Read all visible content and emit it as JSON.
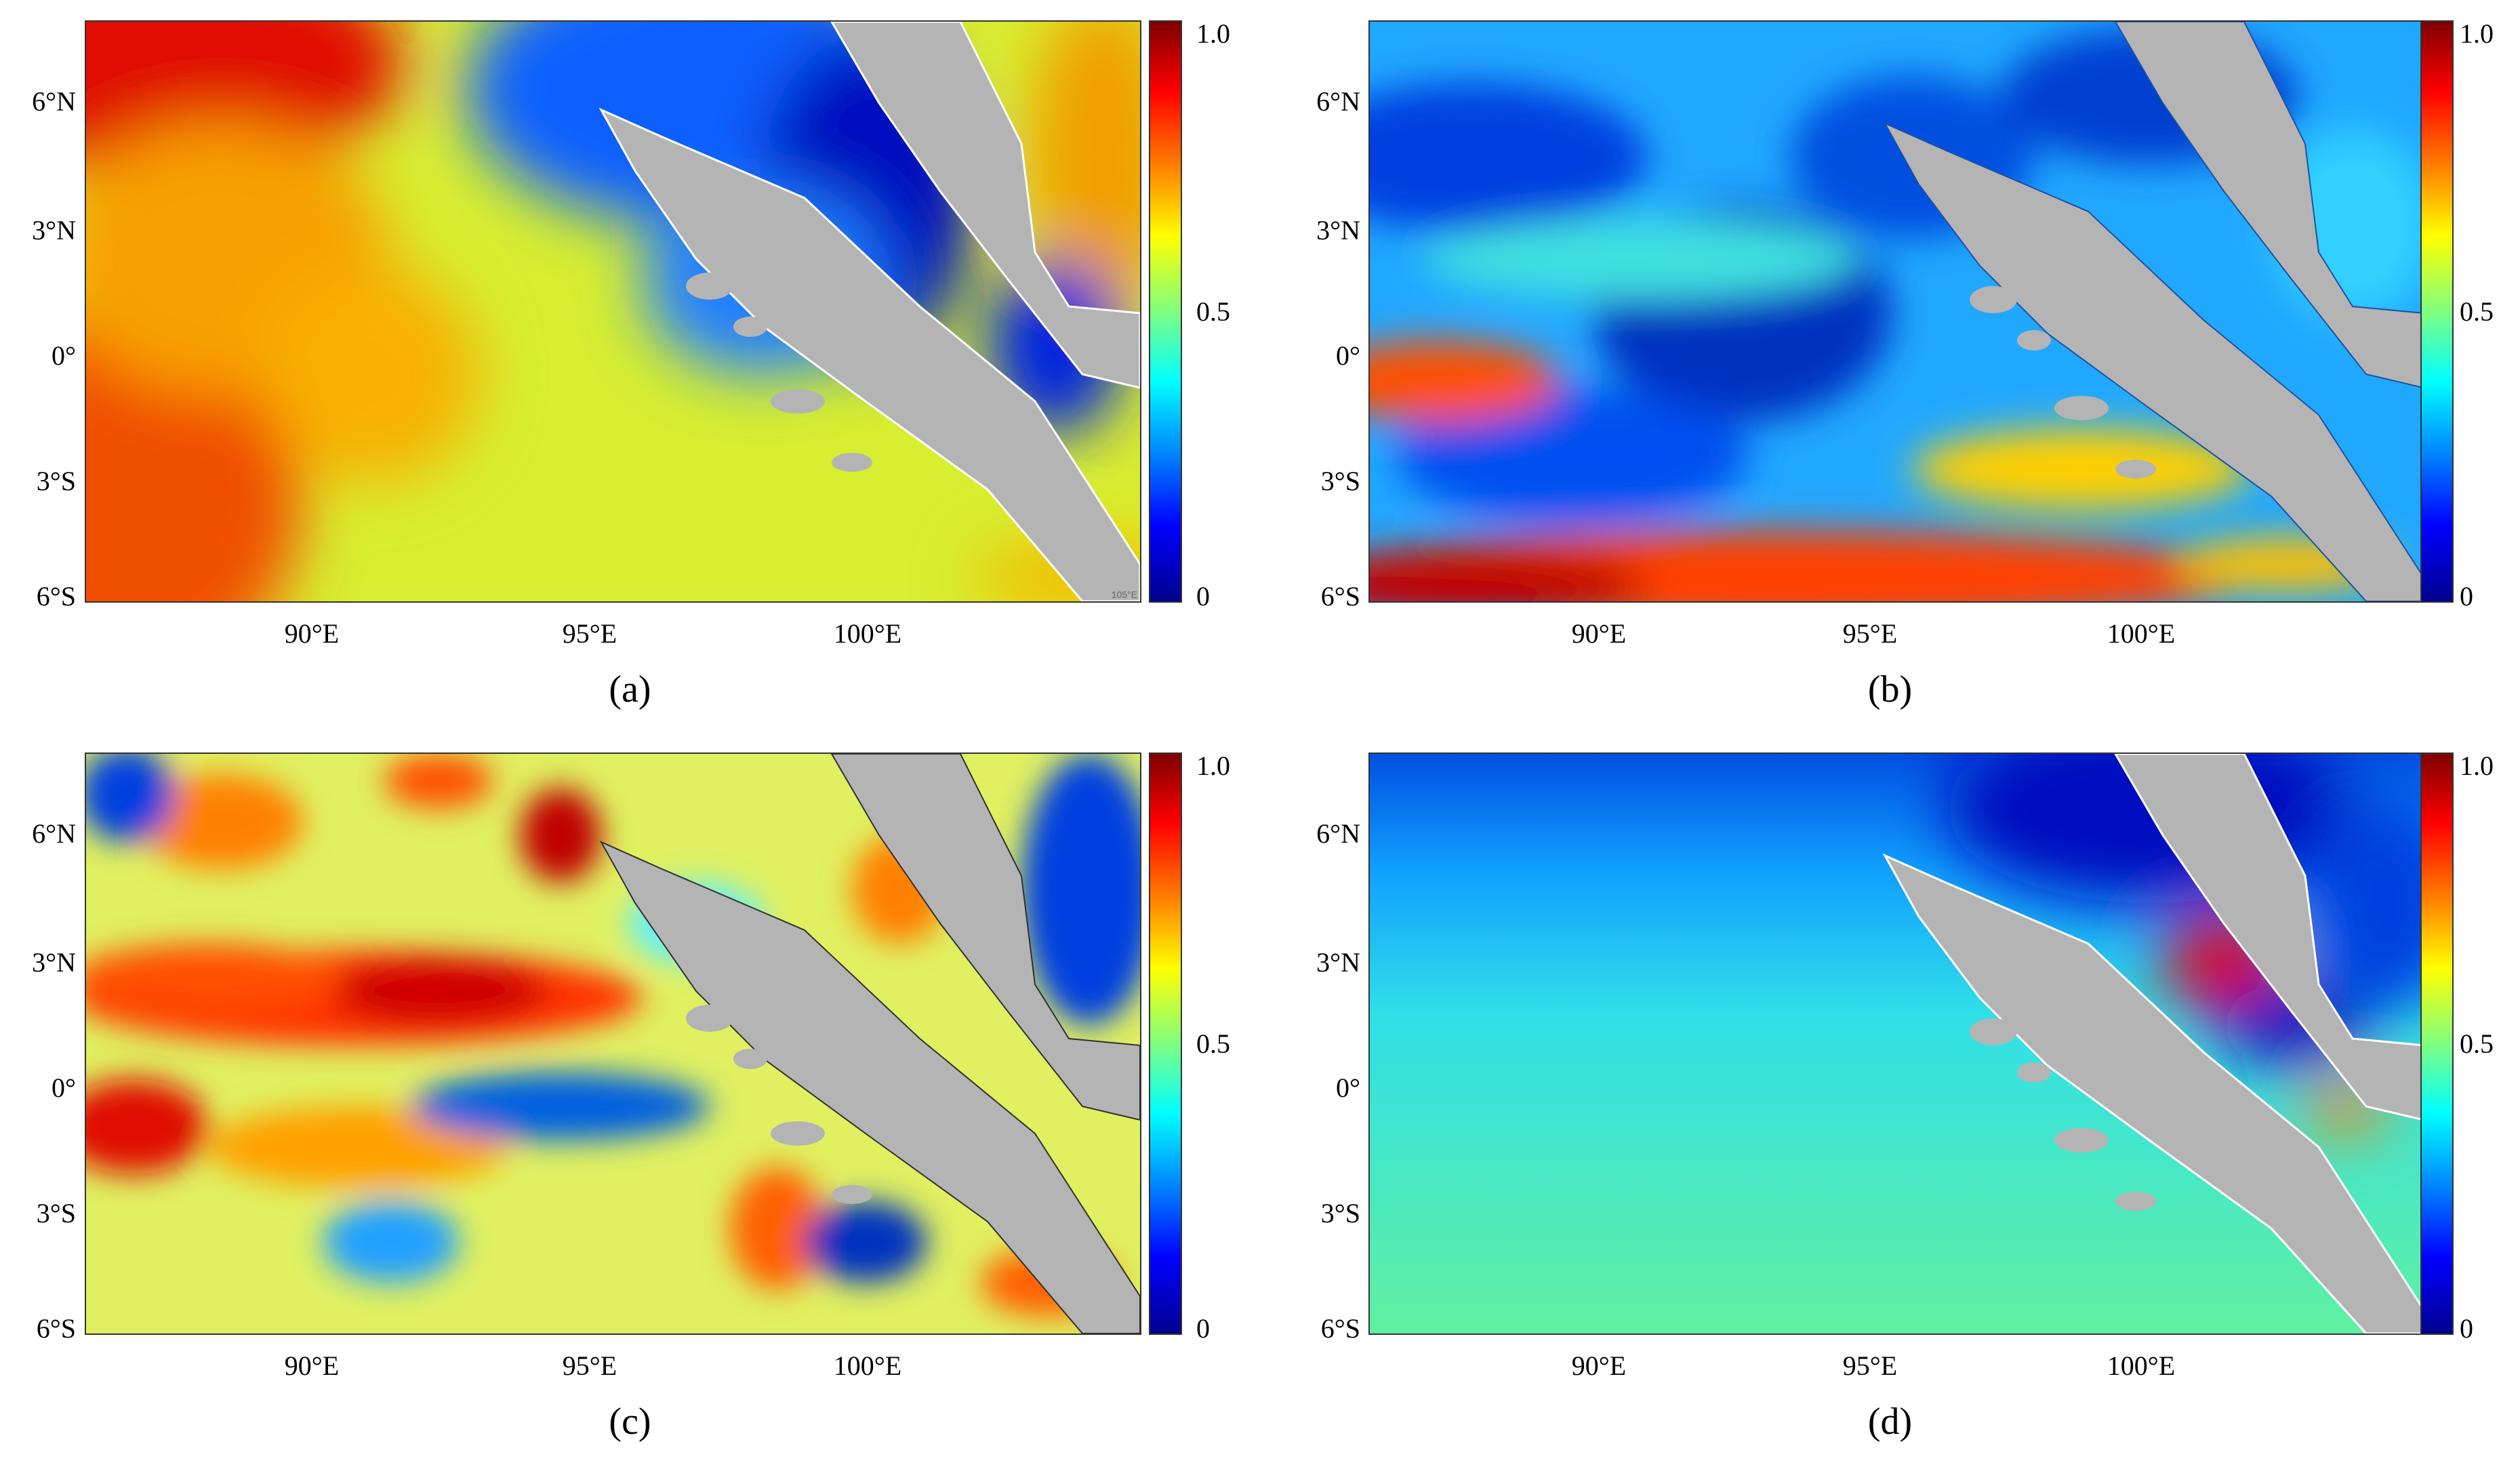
{
  "figure": {
    "lat_labels": [
      "6°N",
      "3°N",
      "0°",
      "3°S",
      "6°S"
    ],
    "lon_labels": [
      "90°E",
      "95°E",
      "100°E"
    ],
    "colorbar_ticks": [
      "1.0",
      "0.5",
      "0"
    ],
    "colormap": [
      "#00008f",
      "#0000ff",
      "#0080ff",
      "#00ffff",
      "#80ff80",
      "#ffff00",
      "#ff8000",
      "#ff0000",
      "#7f0000"
    ],
    "land_color": "#b4b4b4",
    "panels": [
      {
        "caption": "(a)",
        "credit": "105°E"
      },
      {
        "caption": "(b)"
      },
      {
        "caption": "(c)"
      },
      {
        "caption": "(d)"
      }
    ]
  },
  "chart_data": {
    "type": "heatmap",
    "x_axis": {
      "label": "",
      "ticks": [
        "90°E",
        "95°E",
        "100°E"
      ],
      "range": [
        86,
        105
      ]
    },
    "y_axis": {
      "label": "",
      "ticks": [
        "6°N",
        "3°N",
        "0°",
        "3°S",
        "6°S"
      ],
      "range": [
        -6,
        8
      ]
    },
    "color_scale": {
      "min": 0,
      "max": 1.0
    },
    "panels": [
      "(a)",
      "(b)",
      "(c)",
      "(d)"
    ]
  }
}
